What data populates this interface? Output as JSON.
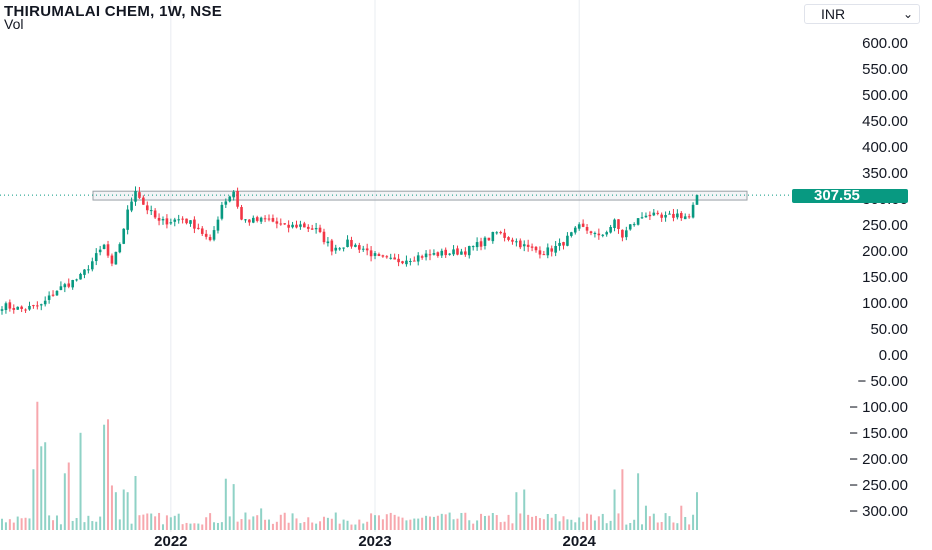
{
  "header": {
    "title": "THIRUMALAI CHEM, 1W, NSE",
    "volume_label": "Vol",
    "currency": "INR"
  },
  "colors": {
    "up": "#089981",
    "down": "#f23645",
    "vol_up": "#8fd2c6",
    "vol_down": "#f7a7ad",
    "grid": "#e9ecf1",
    "zone_border": "#9aa0a6",
    "price_line": "#089981"
  },
  "chart_data": {
    "type": "candlestick",
    "title": "THIRUMALAI CHEM, 1W, NSE",
    "y_axis": {
      "ticks": [
        600,
        550,
        500,
        450,
        400,
        350,
        300,
        250,
        200,
        150,
        100,
        50,
        0,
        -50,
        -100,
        -150,
        -200,
        -250,
        -300
      ],
      "tick_labels": [
        "600.00",
        "550.00",
        "500.00",
        "450.00",
        "400.00",
        "350.00",
        "300.00",
        "250.00",
        "200.00",
        "150.00",
        "100.00",
        "50.00",
        "0.00",
        "− 50.00",
        "− 100.00",
        "− 150.00",
        "− 200.00",
        "− 250.00",
        "− 300.00"
      ],
      "range": [
        -320,
        640
      ]
    },
    "x_axis": {
      "tick_labels": [
        "2022",
        "2023",
        "2024"
      ],
      "tick_index": [
        43,
        95,
        147
      ],
      "bar_count": 178
    },
    "last_price": 307.55,
    "last_price_label": "307.55",
    "resistance_zone": [
      298,
      315
    ],
    "price_anchors": [
      [
        0,
        95
      ],
      [
        5,
        88
      ],
      [
        10,
        95
      ],
      [
        14,
        125
      ],
      [
        20,
        150
      ],
      [
        26,
        210
      ],
      [
        28,
        170
      ],
      [
        30,
        215
      ],
      [
        32,
        275
      ],
      [
        34,
        320
      ],
      [
        36,
        290
      ],
      [
        40,
        255
      ],
      [
        46,
        262
      ],
      [
        50,
        245
      ],
      [
        53,
        215
      ],
      [
        56,
        290
      ],
      [
        59,
        315
      ],
      [
        61,
        260
      ],
      [
        64,
        258
      ],
      [
        68,
        260
      ],
      [
        72,
        245
      ],
      [
        76,
        250
      ],
      [
        80,
        240
      ],
      [
        84,
        205
      ],
      [
        88,
        215
      ],
      [
        92,
        205
      ],
      [
        96,
        185
      ],
      [
        100,
        180
      ],
      [
        106,
        190
      ],
      [
        112,
        195
      ],
      [
        118,
        200
      ],
      [
        122,
        215
      ],
      [
        126,
        235
      ],
      [
        130,
        222
      ],
      [
        134,
        205
      ],
      [
        138,
        198
      ],
      [
        142,
        210
      ],
      [
        147,
        245
      ],
      [
        150,
        238
      ],
      [
        152,
        225
      ],
      [
        156,
        255
      ],
      [
        158,
        228
      ],
      [
        160,
        248
      ],
      [
        164,
        272
      ],
      [
        168,
        262
      ],
      [
        172,
        270
      ],
      [
        175,
        265
      ],
      [
        177,
        305
      ]
    ],
    "volume_spikes": [
      [
        8,
        0.45
      ],
      [
        9,
        0.95
      ],
      [
        10,
        0.62
      ],
      [
        11,
        0.65
      ],
      [
        16,
        0.42
      ],
      [
        17,
        0.5
      ],
      [
        20,
        0.72
      ],
      [
        26,
        0.78
      ],
      [
        27,
        0.82
      ],
      [
        28,
        0.33
      ],
      [
        29,
        0.28
      ],
      [
        31,
        0.3
      ],
      [
        32,
        0.28
      ],
      [
        34,
        0.4
      ],
      [
        57,
        0.38
      ],
      [
        59,
        0.34
      ],
      [
        66,
        0.16
      ],
      [
        131,
        0.28
      ],
      [
        133,
        0.3
      ],
      [
        156,
        0.3
      ],
      [
        158,
        0.45
      ],
      [
        162,
        0.42
      ],
      [
        164,
        0.18
      ],
      [
        173,
        0.18
      ],
      [
        177,
        0.28
      ]
    ]
  }
}
